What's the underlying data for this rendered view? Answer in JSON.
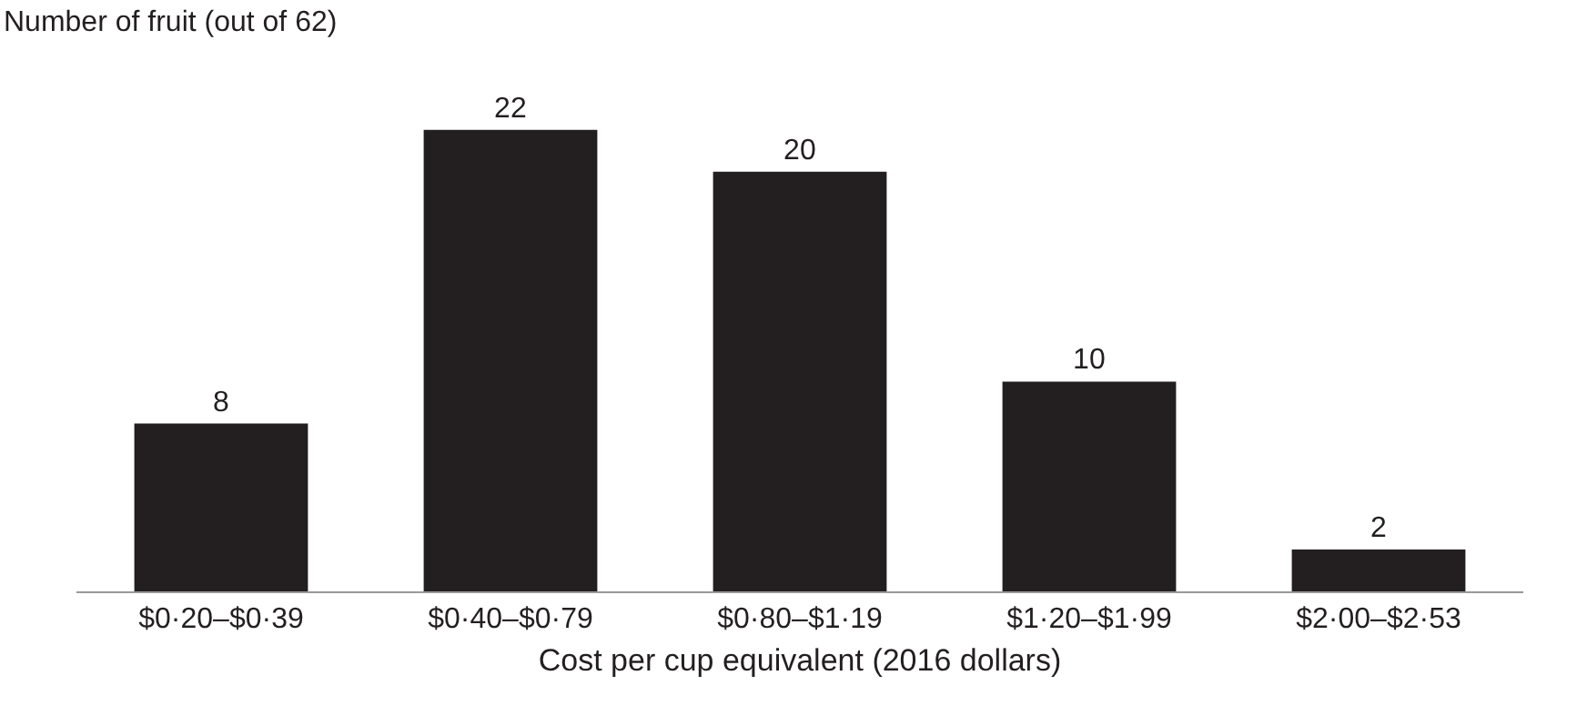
{
  "chart_data": {
    "type": "bar",
    "ylabel": "Number of fruit (out of 62)",
    "xlabel": "Cost per cup equivalent (2016 dollars)",
    "categories": [
      "$0·20–$0·39",
      "$0·40–$0·79",
      "$0·80–$1·19",
      "$1·20–$1·99",
      "$2·00–$2·53"
    ],
    "values": [
      8,
      22,
      20,
      10,
      2
    ],
    "color": "#231f20",
    "data_labels": true,
    "tick_labels": "x"
  }
}
